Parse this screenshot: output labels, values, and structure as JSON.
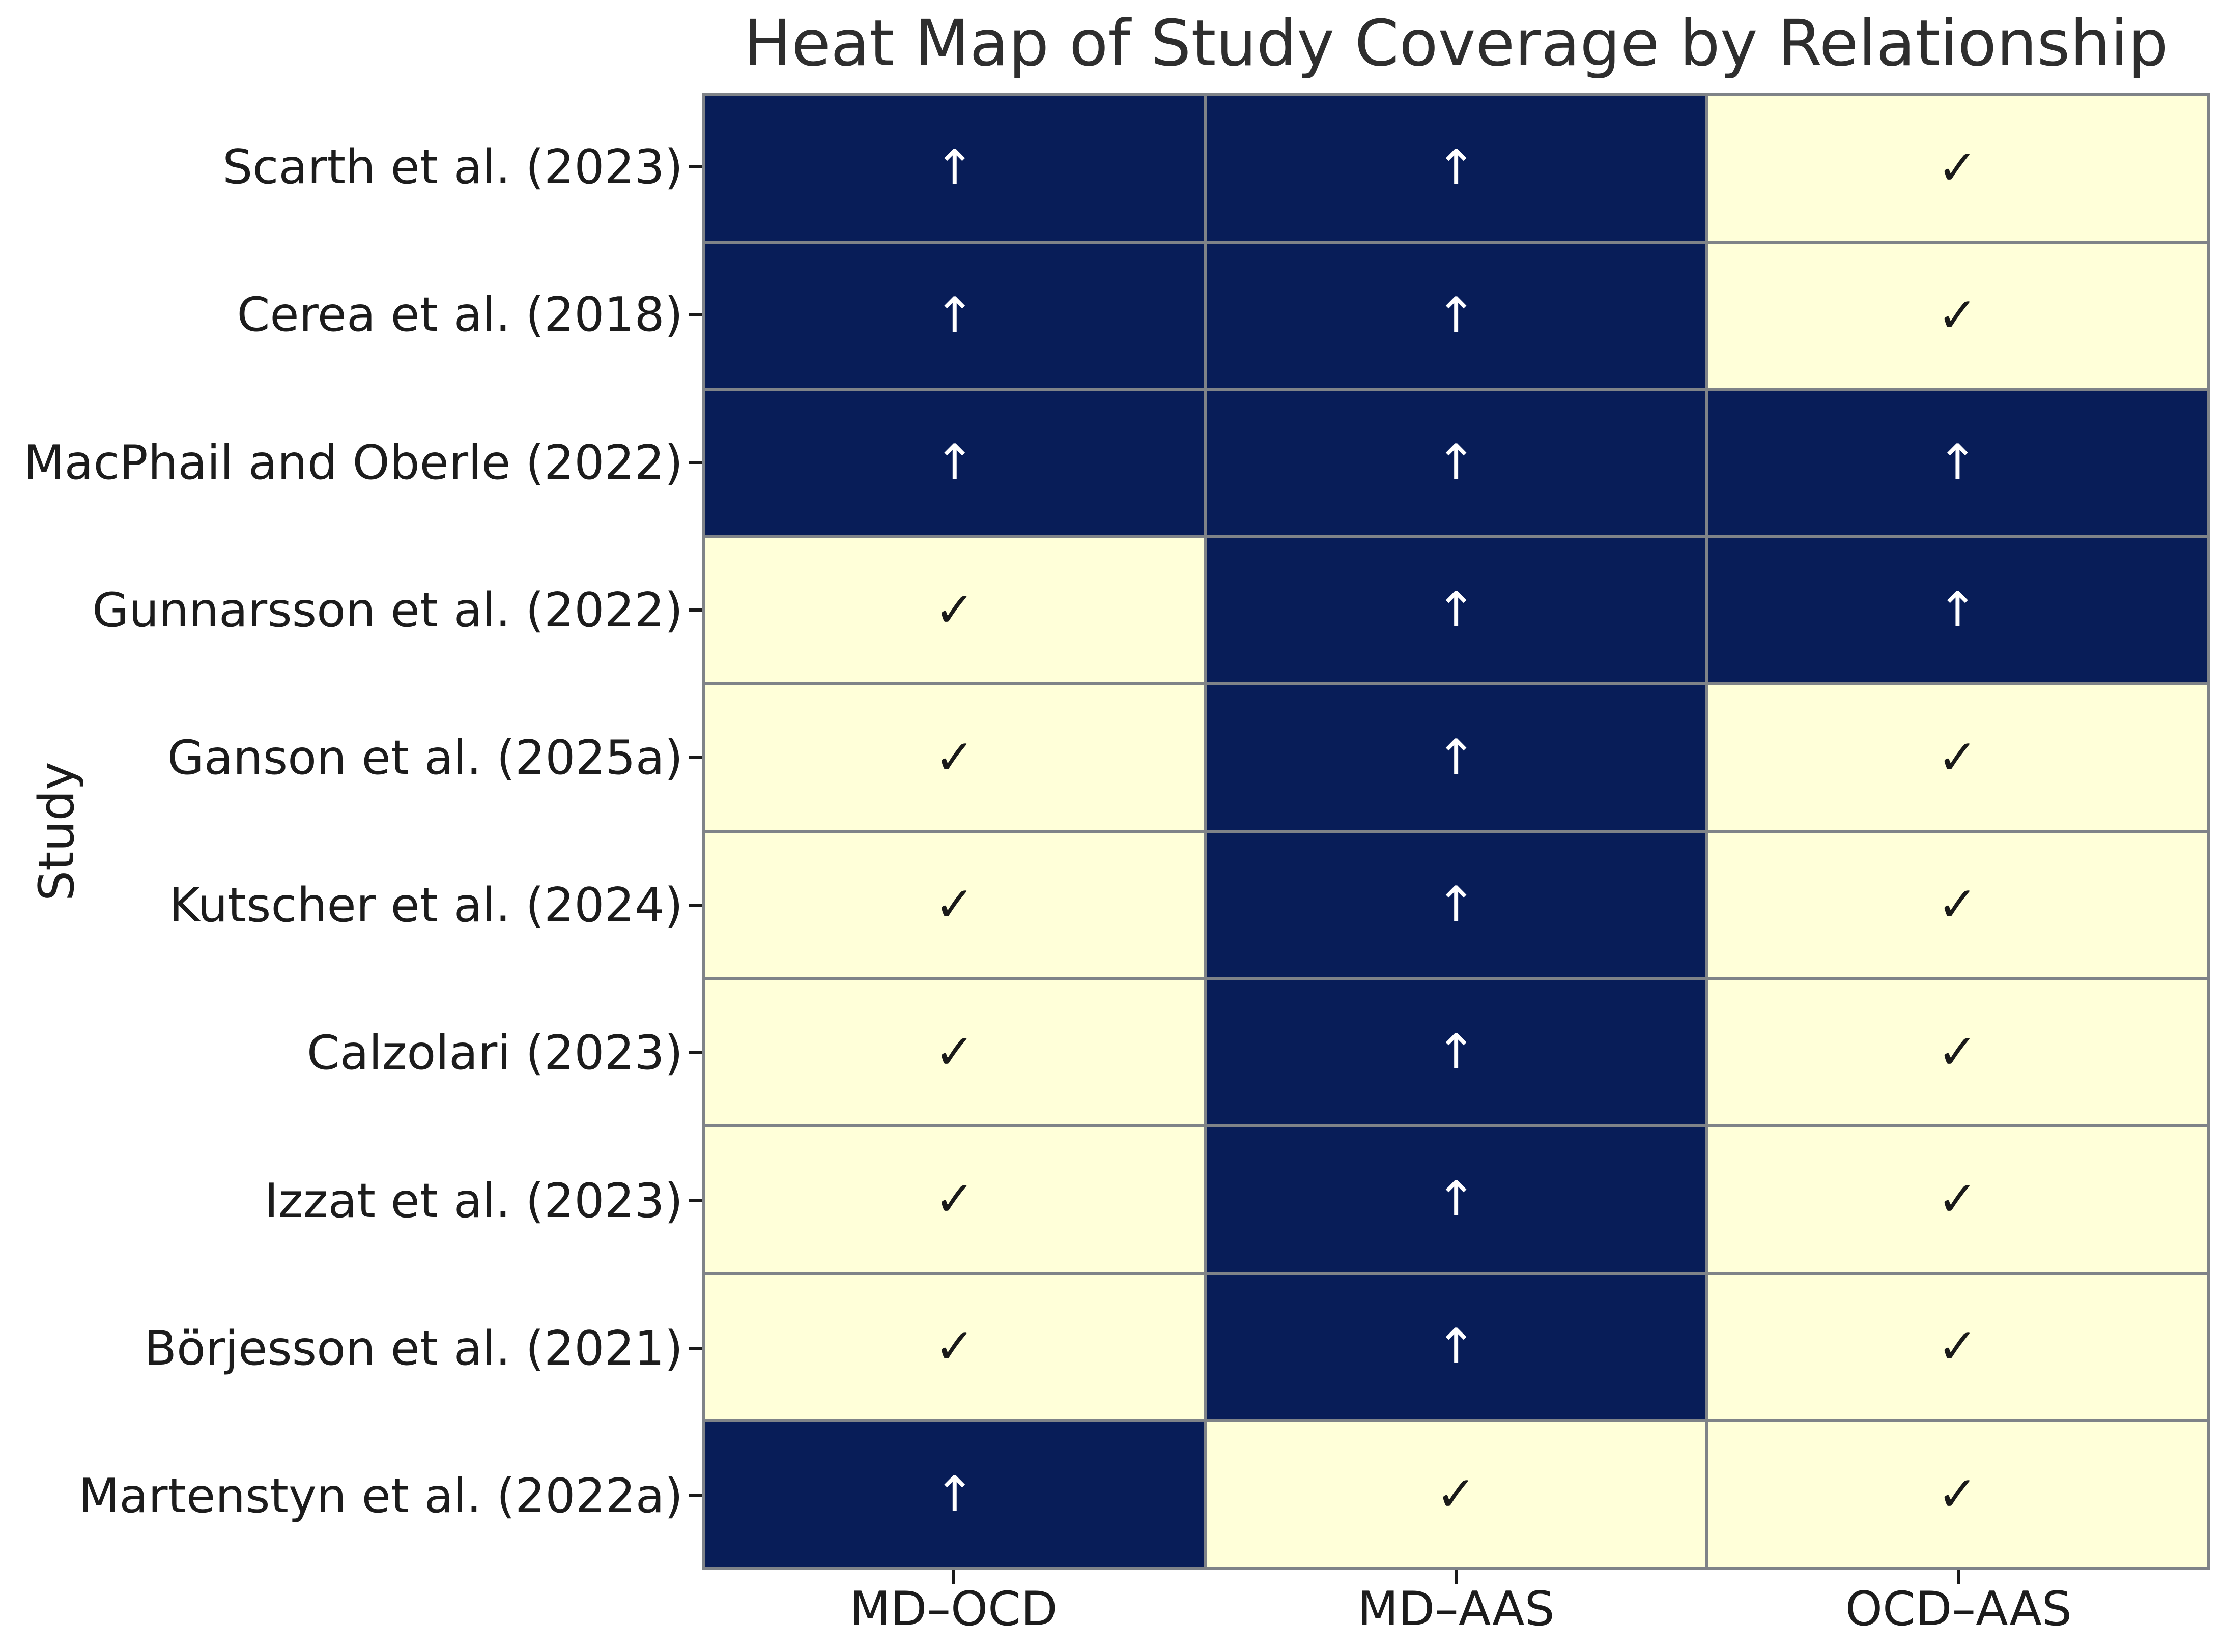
{
  "chart_data": {
    "type": "heatmap",
    "title": "Heat Map of Study Coverage by Relationship",
    "xlabel": "",
    "ylabel": "Study",
    "columns": [
      "MD–OCD",
      "MD–AAS",
      "OCD–AAS"
    ],
    "rows": [
      "Scarth et al. (2023)",
      "Cerea et al. (2018)",
      "MacPhail and Oberle (2022)",
      "Gunnarsson et al. (2022)",
      "Ganson et al. (2025a)",
      "Kutscher et al. (2024)",
      "Calzolari (2023)",
      "Izzat et al. (2023)",
      "Börjesson et al. (2021)",
      "Martenstyn et al. (2022a)"
    ],
    "cells": [
      [
        "up",
        "up",
        "check"
      ],
      [
        "up",
        "up",
        "check"
      ],
      [
        "up",
        "up",
        "up"
      ],
      [
        "check",
        "up",
        "up"
      ],
      [
        "check",
        "up",
        "check"
      ],
      [
        "check",
        "up",
        "check"
      ],
      [
        "check",
        "up",
        "check"
      ],
      [
        "check",
        "up",
        "check"
      ],
      [
        "check",
        "up",
        "check"
      ],
      [
        "up",
        "check",
        "check"
      ]
    ],
    "symbols": {
      "up": "↑",
      "check": "✓"
    },
    "cell_colors": {
      "up": "#081d58",
      "check": "#ffffd9"
    },
    "symbol_colors": {
      "up": "#ffffff",
      "check": "#1a1a1a"
    },
    "grid_line_color": "#7f8388",
    "legend_position": "none",
    "grid": "on"
  }
}
